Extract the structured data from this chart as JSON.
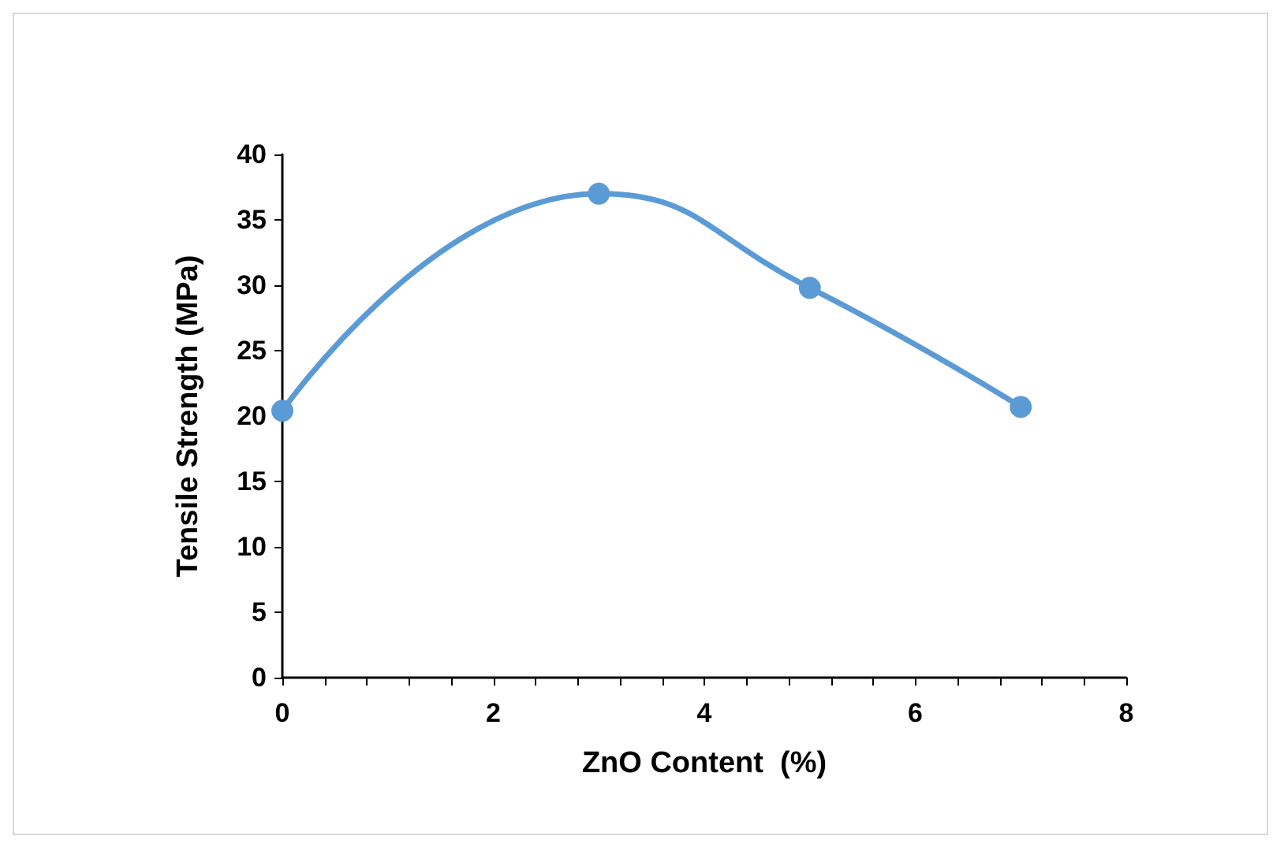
{
  "chart_data": {
    "type": "line",
    "xlabel": "ZnO Content  (%)",
    "ylabel": "Tensile Strength (MPa)",
    "x": [
      0,
      3,
      5,
      7
    ],
    "series": [
      {
        "color": "#5b9bd5",
        "values": [
          20.4,
          37,
          29.8,
          20.7
        ]
      }
    ],
    "xlim": [
      0,
      8
    ],
    "xticks": [
      0,
      {
        "value": 0.4,
        "label": null
      },
      {
        "value": 0.8,
        "label": null
      },
      {
        "value": 1.2,
        "label": null
      },
      {
        "value": 1.6,
        "label": null
      },
      2,
      {
        "value": 2.4,
        "label": null
      },
      {
        "value": 2.8,
        "label": null
      },
      {
        "value": 3.2,
        "label": null
      },
      {
        "value": 3.6,
        "label": null
      },
      4,
      {
        "value": 4.4,
        "label": null
      },
      {
        "value": 4.8,
        "label": null
      },
      {
        "value": 5.2,
        "label": null
      },
      {
        "value": 5.6,
        "label": null
      },
      6,
      {
        "value": 6.4,
        "label": null
      },
      {
        "value": 6.8,
        "label": null
      },
      {
        "value": 7.2,
        "label": null
      },
      {
        "value": 7.6,
        "label": null
      },
      8
    ],
    "ylim": [
      0,
      40
    ],
    "yticks": [
      0,
      5,
      10,
      15,
      20,
      25,
      30,
      35,
      40
    ],
    "grid": false,
    "marker": "circle",
    "line_style": "solid"
  }
}
